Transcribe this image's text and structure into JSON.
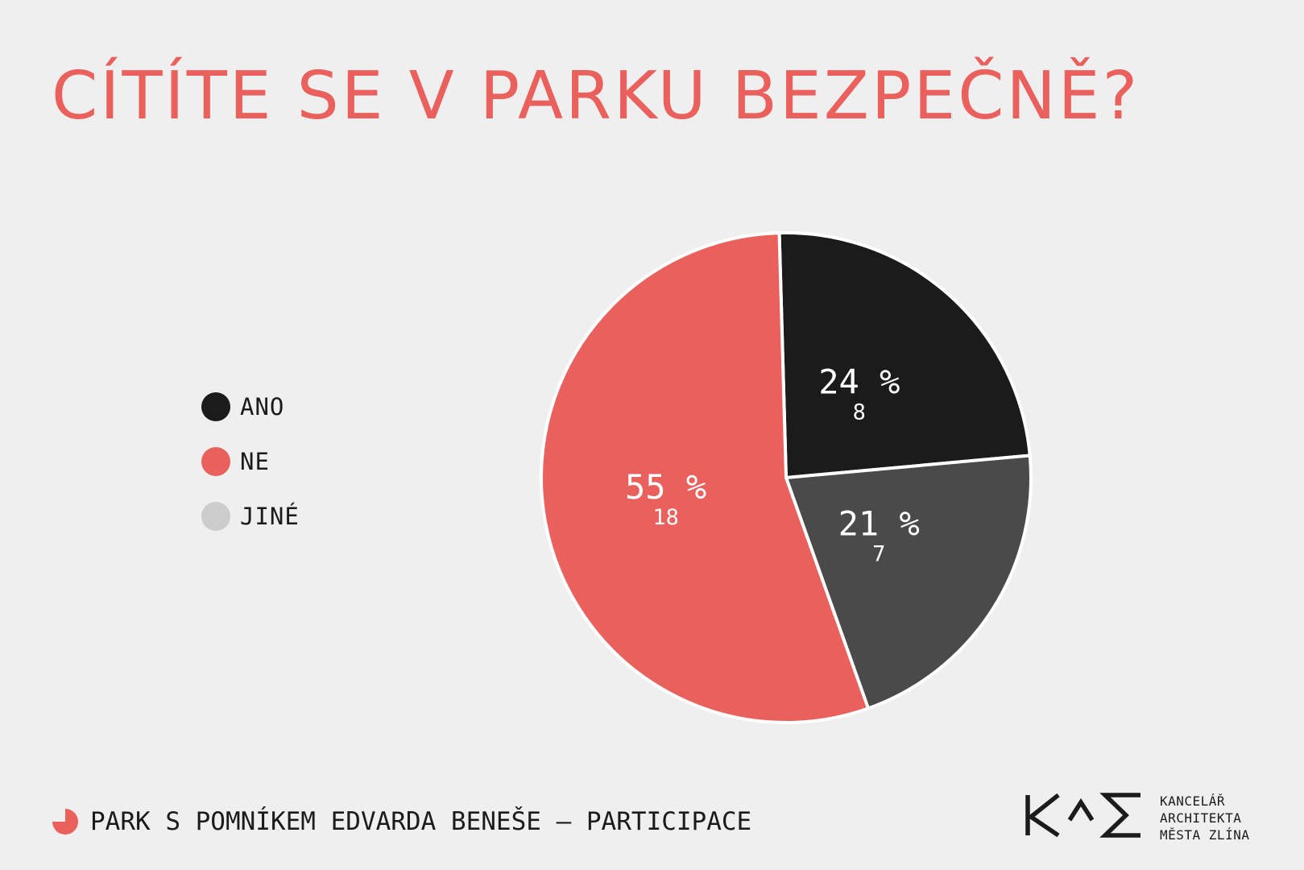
{
  "header": {
    "title": "CÍTÍTE SE V PARKU BEZPEČNĚ?"
  },
  "legend": {
    "items": [
      {
        "label": "ANO",
        "color": "#1b1b1b"
      },
      {
        "label": "NE",
        "color": "#e9605c"
      },
      {
        "label": "JINÉ",
        "color": "#cccccc"
      }
    ]
  },
  "chart_data": {
    "type": "pie",
    "title": "CÍTÍTE SE V PARKU BEZPEČNĚ?",
    "legend_position": "left",
    "slices": [
      {
        "label": "ANO",
        "percent": 24,
        "percent_label": "24 %",
        "count": 8,
        "count_label": "8",
        "color": "#1b1b1b"
      },
      {
        "label": "JINÉ",
        "percent": 21,
        "percent_label": "21 %",
        "count": 7,
        "count_label": "7",
        "color": "#4a4a4a"
      },
      {
        "label": "NE",
        "percent": 55,
        "percent_label": "55 %",
        "count": 18,
        "count_label": "18",
        "color": "#e9605c"
      }
    ]
  },
  "footer": {
    "project": "PARK S POMNÍKEM EDVARDA BENEŠE – PARTICIPACE",
    "icon": "pie-icon",
    "accent": "#e9605c"
  },
  "logo": {
    "mark": "KAM",
    "lines": [
      "KANCELÁŘ",
      "ARCHITEKTA",
      "MĚSTA ZLÍNA"
    ]
  }
}
